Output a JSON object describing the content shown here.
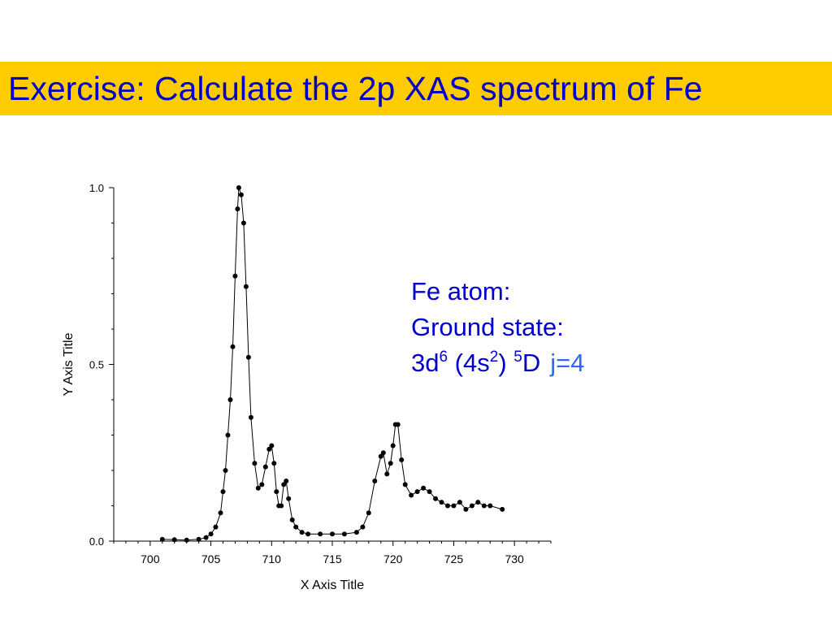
{
  "slide": {
    "title": "Exercise: Calculate the 2p XAS spectrum of Fe",
    "title_color": "#0000cc",
    "title_bar_color": "#ffcc00"
  },
  "info": {
    "line1": "Fe atom:",
    "line2": "Ground state:",
    "config_base": "3d",
    "config_sup1": "6",
    "config_mid": " (4s",
    "config_sup2": "2",
    "config_close": ")",
    "term_sup": "5",
    "term_letter": "D",
    "j_label": "j=4",
    "text_color": "#0000cc",
    "j_color": "#3366ff"
  },
  "chart_data": {
    "type": "scatter",
    "title": "",
    "xlabel": "X Axis Title",
    "ylabel": "Y Axis Title",
    "xlim": [
      697,
      733
    ],
    "ylim": [
      0.0,
      1.0
    ],
    "xticks": [
      700,
      705,
      710,
      715,
      720,
      725,
      730
    ],
    "xtick_labels": [
      "700",
      "705",
      "710",
      "715",
      "720",
      "725",
      "730"
    ],
    "yticks": [
      0.0,
      0.5,
      1.0
    ],
    "ytick_labels": [
      "0.0",
      "0.5",
      "1.0"
    ],
    "grid": false,
    "marker_color": "#000000",
    "series": [
      {
        "points": [
          [
            701.0,
            0.005
          ],
          [
            702.0,
            0.004
          ],
          [
            703.0,
            0.003
          ],
          [
            704.0,
            0.005
          ],
          [
            704.6,
            0.01
          ],
          [
            705.0,
            0.02
          ],
          [
            705.4,
            0.04
          ],
          [
            705.8,
            0.08
          ],
          [
            706.0,
            0.14
          ],
          [
            706.2,
            0.2
          ],
          [
            706.4,
            0.3
          ],
          [
            706.6,
            0.4
          ],
          [
            706.8,
            0.55
          ],
          [
            707.0,
            0.75
          ],
          [
            707.2,
            0.94
          ],
          [
            707.3,
            1.0
          ],
          [
            707.5,
            0.98
          ],
          [
            707.7,
            0.9
          ],
          [
            707.9,
            0.72
          ],
          [
            708.1,
            0.52
          ],
          [
            708.3,
            0.35
          ],
          [
            708.6,
            0.22
          ],
          [
            708.9,
            0.15
          ],
          [
            709.2,
            0.16
          ],
          [
            709.5,
            0.21
          ],
          [
            709.8,
            0.26
          ],
          [
            710.0,
            0.27
          ],
          [
            710.2,
            0.22
          ],
          [
            710.4,
            0.14
          ],
          [
            710.6,
            0.1
          ],
          [
            710.8,
            0.1
          ],
          [
            711.0,
            0.16
          ],
          [
            711.2,
            0.17
          ],
          [
            711.4,
            0.12
          ],
          [
            711.7,
            0.06
          ],
          [
            712.0,
            0.04
          ],
          [
            712.5,
            0.025
          ],
          [
            713.0,
            0.02
          ],
          [
            714.0,
            0.02
          ],
          [
            715.0,
            0.02
          ],
          [
            716.0,
            0.02
          ],
          [
            717.0,
            0.025
          ],
          [
            717.5,
            0.04
          ],
          [
            718.0,
            0.08
          ],
          [
            718.5,
            0.17
          ],
          [
            719.0,
            0.24
          ],
          [
            719.2,
            0.25
          ],
          [
            719.5,
            0.19
          ],
          [
            719.8,
            0.22
          ],
          [
            720.0,
            0.27
          ],
          [
            720.2,
            0.33
          ],
          [
            720.4,
            0.33
          ],
          [
            720.7,
            0.23
          ],
          [
            721.0,
            0.16
          ],
          [
            721.5,
            0.13
          ],
          [
            722.0,
            0.14
          ],
          [
            722.5,
            0.15
          ],
          [
            723.0,
            0.14
          ],
          [
            723.5,
            0.12
          ],
          [
            724.0,
            0.11
          ],
          [
            724.5,
            0.1
          ],
          [
            725.0,
            0.1
          ],
          [
            725.5,
            0.11
          ],
          [
            726.0,
            0.09
          ],
          [
            726.5,
            0.1
          ],
          [
            727.0,
            0.11
          ],
          [
            727.5,
            0.1
          ],
          [
            728.0,
            0.1
          ],
          [
            729.0,
            0.09
          ]
        ]
      }
    ]
  }
}
